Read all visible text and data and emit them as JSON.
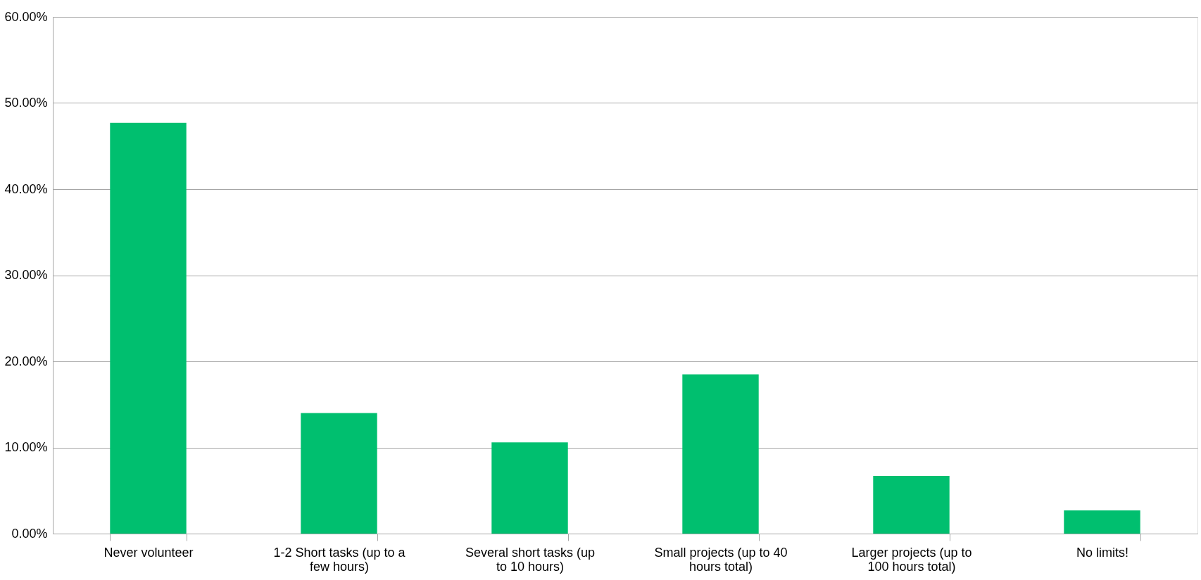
{
  "chart_data": {
    "type": "bar",
    "categories": [
      "Never volunteer",
      "1-2 Short tasks (up to a few hours)",
      "Several short tasks (up to 10 hours)",
      "Small projects (up to 40 hours total)",
      "Larger projects (up to 100 hours total)",
      "No limits!"
    ],
    "values": [
      47.7,
      14.0,
      10.6,
      18.5,
      6.7,
      2.7
    ],
    "color": "#00bf6f",
    "ylim": [
      0,
      60
    ],
    "yticks": [
      {
        "value": 0,
        "label": "0.00%"
      },
      {
        "value": 10,
        "label": "10.00%"
      },
      {
        "value": 20,
        "label": "20.00%"
      },
      {
        "value": 30,
        "label": "30.00%"
      },
      {
        "value": 40,
        "label": "40.00%"
      },
      {
        "value": 50,
        "label": "50.00%"
      },
      {
        "value": 60,
        "label": "60.00%"
      }
    ],
    "grid": "y"
  }
}
